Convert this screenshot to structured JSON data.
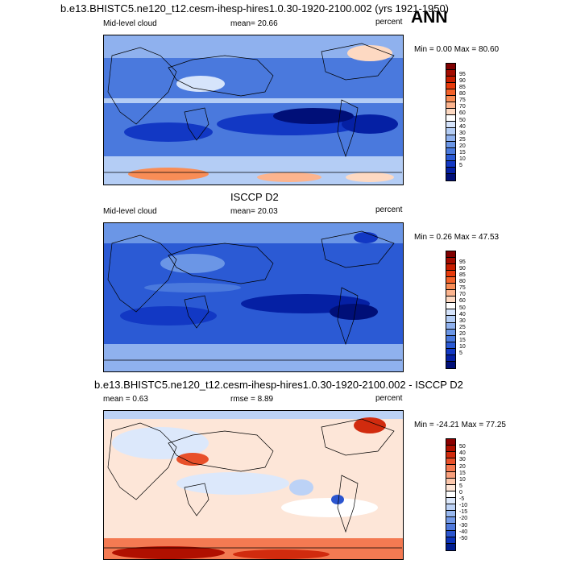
{
  "header": {
    "title": "b.e13.BHISTC5.ne120_t12.cesm-ihesp-hires1.0.30-1920-2100.002 (yrs 1921-1950)",
    "season": "ANN"
  },
  "panels": [
    {
      "id": "model",
      "variable": "Mid-level cloud",
      "mean": "mean=  20.66",
      "units": "percent",
      "minmax": "Min =   0.00 Max =  80.60",
      "colorbar": {
        "colors": [
          "#7f0000",
          "#a30b00",
          "#c81d00",
          "#e83a0b",
          "#f4622a",
          "#f98d56",
          "#fcb48e",
          "#fdd9c2",
          "#ffffff",
          "#d6e4fb",
          "#b4cdf5",
          "#8fb1ee",
          "#6b96e6",
          "#4a79dd",
          "#2b5ad4",
          "#1238c4",
          "#0520a4",
          "#000f78"
        ],
        "labels": [
          "95",
          "90",
          "85",
          "80",
          "75",
          "70",
          "60",
          "50",
          "40",
          "30",
          "25",
          "20",
          "15",
          "10",
          "5"
        ]
      }
    },
    {
      "id": "obs",
      "panel_title": "ISCCP D2",
      "variable": "Mid-level cloud",
      "mean": "mean=  20.03",
      "units": "percent",
      "minmax": "Min =   0.26 Max =  47.53",
      "colorbar": {
        "colors": [
          "#7f0000",
          "#a30b00",
          "#c81d00",
          "#e83a0b",
          "#f4622a",
          "#f98d56",
          "#fcb48e",
          "#fdd9c2",
          "#ffffff",
          "#d6e4fb",
          "#b4cdf5",
          "#8fb1ee",
          "#6b96e6",
          "#4a79dd",
          "#2b5ad4",
          "#1238c4",
          "#0520a4",
          "#000f78"
        ],
        "labels": [
          "95",
          "90",
          "85",
          "80",
          "75",
          "70",
          "60",
          "50",
          "40",
          "30",
          "25",
          "20",
          "15",
          "10",
          "5"
        ]
      }
    },
    {
      "id": "diff",
      "panel_title": "b.e13.BHISTC5.ne120_t12.cesm-ihesp-hires1.0.30-1920-2100.002 - ISCCP D2",
      "mean": "mean =    0.63",
      "rmse": "rmse =    8.89",
      "units": "percent",
      "minmax": "Min = -24.21 Max =  77.25",
      "colorbar": {
        "colors": [
          "#8b0000",
          "#b01000",
          "#d12b0e",
          "#e8502a",
          "#f47a52",
          "#f9a07d",
          "#fcc7ac",
          "#fde6d8",
          "#ffffff",
          "#dce8fb",
          "#bcd2f6",
          "#98b8ef",
          "#7399e6",
          "#4f79dc",
          "#2b55cf",
          "#0c32b8",
          "#001d8f"
        ],
        "labels": [
          "50",
          "40",
          "30",
          "20",
          "15",
          "10",
          "5",
          "0",
          "-5",
          "-10",
          "-15",
          "-20",
          "-30",
          "-40",
          "-50"
        ]
      }
    }
  ]
}
